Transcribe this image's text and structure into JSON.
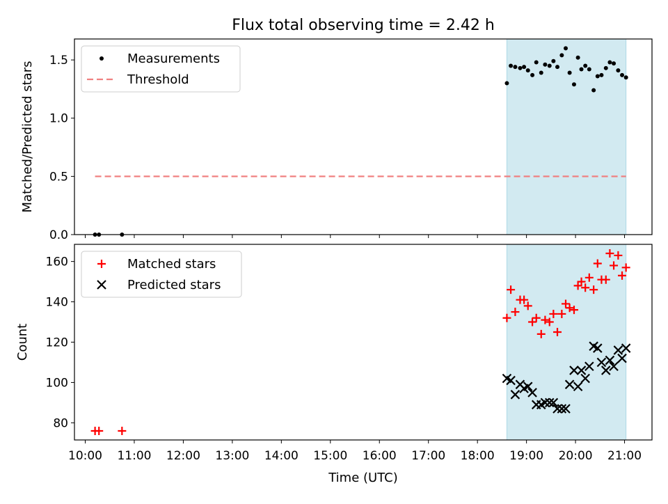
{
  "chart_data": {
    "title": "Flux total observing time = 2.42 h",
    "xlabel": "Time (UTC)",
    "x_ticks": [
      "10:00",
      "11:00",
      "12:00",
      "13:00",
      "14:00",
      "15:00",
      "16:00",
      "17:00",
      "18:00",
      "19:00",
      "20:00",
      "21:00"
    ],
    "x_range_hours": [
      9.78,
      21.56
    ],
    "highlight_span_hours": [
      18.6,
      21.03
    ],
    "highlight_color": "#add8e6",
    "panels": [
      {
        "type": "scatter",
        "ylabel": "Matched/Predicted stars",
        "ylim": [
          0,
          1.68
        ],
        "y_ticks": [
          0.0,
          0.5,
          1.0,
          1.5
        ],
        "y_tick_labels": [
          "0.0",
          "0.5",
          "1.0",
          "1.5"
        ],
        "legend_position": "top-left",
        "series": [
          {
            "name": "Measurements",
            "marker": "dot",
            "color": "#000000",
            "points": [
              [
                10.2,
                0.0
              ],
              [
                10.28,
                0.0
              ],
              [
                10.75,
                0.0
              ],
              [
                18.6,
                1.3
              ],
              [
                18.68,
                1.45
              ],
              [
                18.77,
                1.44
              ],
              [
                18.87,
                1.43
              ],
              [
                18.95,
                1.44
              ],
              [
                19.03,
                1.41
              ],
              [
                19.12,
                1.37
              ],
              [
                19.2,
                1.48
              ],
              [
                19.3,
                1.39
              ],
              [
                19.38,
                1.46
              ],
              [
                19.47,
                1.45
              ],
              [
                19.55,
                1.49
              ],
              [
                19.63,
                1.44
              ],
              [
                19.72,
                1.54
              ],
              [
                19.8,
                1.6
              ],
              [
                19.88,
                1.39
              ],
              [
                19.97,
                1.29
              ],
              [
                20.05,
                1.52
              ],
              [
                20.12,
                1.42
              ],
              [
                20.2,
                1.45
              ],
              [
                20.28,
                1.42
              ],
              [
                20.37,
                1.24
              ],
              [
                20.45,
                1.36
              ],
              [
                20.53,
                1.37
              ],
              [
                20.62,
                1.43
              ],
              [
                20.7,
                1.48
              ],
              [
                20.78,
                1.47
              ],
              [
                20.87,
                1.41
              ],
              [
                20.95,
                1.37
              ],
              [
                21.03,
                1.35
              ]
            ]
          },
          {
            "name": "Threshold",
            "marker": "dashed-line",
            "color": "#f08080",
            "points": [
              [
                10.2,
                0.5
              ],
              [
                21.03,
                0.5
              ]
            ]
          }
        ]
      },
      {
        "type": "scatter",
        "ylabel": "Count",
        "ylim": [
          71.5,
          168.5
        ],
        "y_ticks": [
          80,
          100,
          120,
          140,
          160
        ],
        "y_tick_labels": [
          "80",
          "100",
          "120",
          "140",
          "160"
        ],
        "legend_position": "top-left",
        "series": [
          {
            "name": "Matched stars",
            "marker": "plus",
            "color": "#ff0000",
            "points": [
              [
                10.2,
                76
              ],
              [
                10.28,
                76
              ],
              [
                10.75,
                76
              ],
              [
                18.6,
                132
              ],
              [
                18.68,
                146
              ],
              [
                18.77,
                135
              ],
              [
                18.87,
                141
              ],
              [
                18.95,
                141
              ],
              [
                19.03,
                138
              ],
              [
                19.12,
                130
              ],
              [
                19.2,
                132
              ],
              [
                19.3,
                124
              ],
              [
                19.38,
                131
              ],
              [
                19.47,
                130
              ],
              [
                19.55,
                134
              ],
              [
                19.63,
                125
              ],
              [
                19.72,
                134
              ],
              [
                19.8,
                139
              ],
              [
                19.88,
                137
              ],
              [
                19.97,
                136
              ],
              [
                20.05,
                148
              ],
              [
                20.12,
                150
              ],
              [
                20.2,
                147
              ],
              [
                20.28,
                152
              ],
              [
                20.37,
                146
              ],
              [
                20.45,
                159
              ],
              [
                20.53,
                151
              ],
              [
                20.62,
                151
              ],
              [
                20.7,
                164
              ],
              [
                20.78,
                158
              ],
              [
                20.87,
                163
              ],
              [
                20.95,
                153
              ],
              [
                21.03,
                157
              ]
            ]
          },
          {
            "name": "Predicted stars",
            "marker": "x",
            "color": "#000000",
            "points": [
              [
                18.6,
                102
              ],
              [
                18.68,
                101
              ],
              [
                18.77,
                94
              ],
              [
                18.87,
                99
              ],
              [
                18.95,
                97
              ],
              [
                19.03,
                98
              ],
              [
                19.12,
                95
              ],
              [
                19.2,
                89
              ],
              [
                19.3,
                89
              ],
              [
                19.38,
                90
              ],
              [
                19.47,
                90
              ],
              [
                19.55,
                90
              ],
              [
                19.63,
                87
              ],
              [
                19.72,
                87
              ],
              [
                19.8,
                87
              ],
              [
                19.88,
                99
              ],
              [
                19.97,
                106
              ],
              [
                20.05,
                98
              ],
              [
                20.12,
                106
              ],
              [
                20.2,
                102
              ],
              [
                20.28,
                108
              ],
              [
                20.37,
                118
              ],
              [
                20.45,
                117
              ],
              [
                20.53,
                110
              ],
              [
                20.62,
                106
              ],
              [
                20.7,
                111
              ],
              [
                20.78,
                108
              ],
              [
                20.87,
                116
              ],
              [
                20.95,
                112
              ],
              [
                21.03,
                117
              ]
            ]
          }
        ]
      }
    ]
  }
}
